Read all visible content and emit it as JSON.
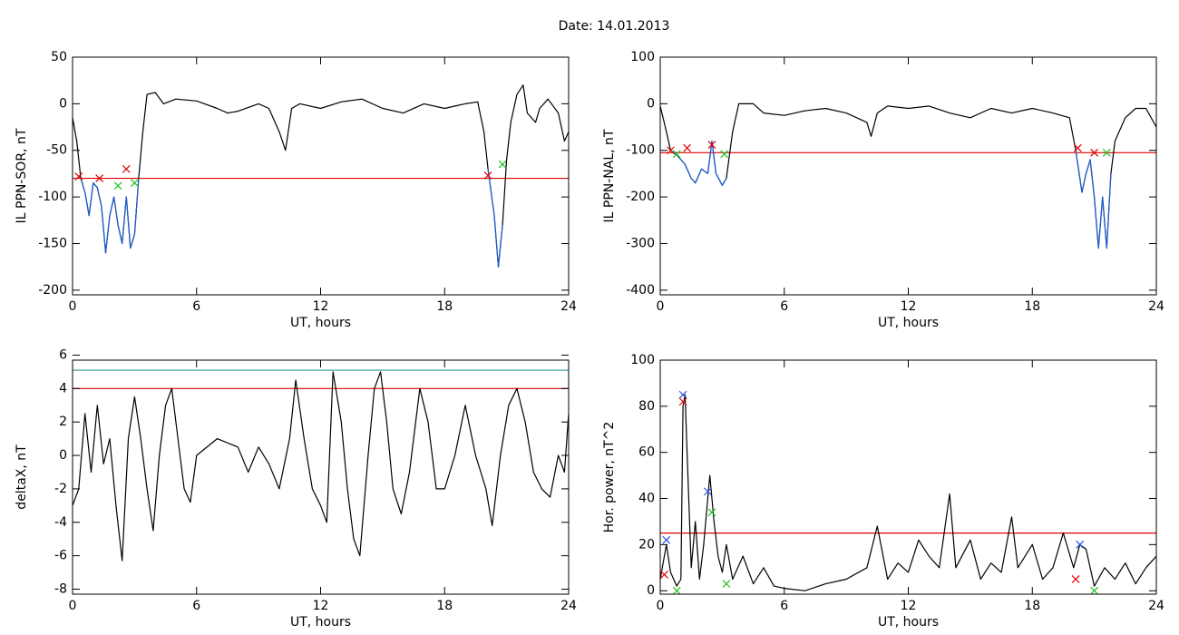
{
  "title": "Date:  14.01.2013",
  "chart_data": [
    {
      "type": "line",
      "xlabel": "UT, hours",
      "ylabel": "IL PPN-SOR, nT",
      "xlim": [
        0,
        24
      ],
      "xticks": [
        0,
        6,
        12,
        18,
        24
      ],
      "ylim": [
        -205,
        50
      ],
      "yticks": [
        -200,
        -150,
        -100,
        -50,
        0,
        50
      ],
      "hlines": [
        {
          "value": -80,
          "color": "#e00000"
        }
      ],
      "series": [
        {
          "color": "#000000",
          "x": [
            0,
            0.2,
            0.4,
            0.6,
            0.8,
            1.0,
            1.2,
            1.4,
            1.6,
            1.8,
            2.0,
            2.2,
            2.4,
            2.6,
            2.8,
            3.0,
            3.2,
            3.4,
            3.6,
            4.0,
            4.4,
            5.0,
            6,
            7,
            7.5,
            8,
            9,
            9.5,
            10,
            10.3,
            10.6,
            11,
            12,
            13,
            14,
            15,
            16,
            17,
            18,
            19,
            19.6,
            19.9,
            20.1,
            20.4,
            20.6,
            20.8,
            21.0,
            21.2,
            21.5,
            21.8,
            22,
            22.4,
            22.6,
            23,
            23.5,
            23.8,
            24
          ],
          "values": [
            -15,
            -40,
            -80,
            -95,
            -120,
            -85,
            -90,
            -110,
            -160,
            -120,
            -100,
            -130,
            -150,
            -100,
            -155,
            -140,
            -80,
            -30,
            10,
            12,
            0,
            5,
            3,
            -5,
            -10,
            -8,
            0,
            -5,
            -30,
            -50,
            -5,
            0,
            -5,
            2,
            5,
            -5,
            -10,
            0,
            -5,
            0,
            2,
            -30,
            -70,
            -120,
            -175,
            -130,
            -60,
            -20,
            10,
            20,
            -10,
            -20,
            -5,
            5,
            -10,
            -40,
            -30
          ]
        },
        {
          "color": "#1f5fd6",
          "x": [
            0.4,
            0.6,
            0.8,
            1.0,
            1.2,
            1.4,
            1.6,
            1.8,
            2.0,
            2.2,
            2.4,
            2.6,
            2.8,
            3.0,
            3.2,
            10,
            20.1,
            20.4,
            20.6,
            20.8
          ],
          "values": [
            -80,
            -95,
            -120,
            -85,
            -90,
            -110,
            -160,
            -120,
            -100,
            -130,
            -150,
            -100,
            -155,
            -140,
            -80,
            null,
            -70,
            -120,
            -175,
            -130
          ]
        }
      ],
      "markers": [
        {
          "color": "#e00000",
          "x": [
            0.3,
            1.3,
            2.6,
            20.1
          ],
          "values": [
            -78,
            -80,
            -70,
            -77
          ]
        },
        {
          "color": "#20c020",
          "x": [
            2.2,
            3.0,
            20.8
          ],
          "values": [
            -88,
            -85,
            -65
          ]
        }
      ]
    },
    {
      "type": "line",
      "xlabel": "UT, hours",
      "ylabel": "IL PPN-NAL, nT",
      "xlim": [
        0,
        24
      ],
      "xticks": [
        0,
        6,
        12,
        18,
        24
      ],
      "ylim": [
        -410,
        100
      ],
      "yticks": [
        -400,
        -300,
        -200,
        -100,
        0,
        100
      ],
      "hlines": [
        {
          "value": -105,
          "color": "#e00000"
        }
      ],
      "series": [
        {
          "color": "#000000",
          "x": [
            0,
            0.3,
            0.5,
            0.8,
            1.0,
            1.2,
            1.5,
            1.7,
            2.0,
            2.3,
            2.5,
            2.7,
            3.0,
            3.2,
            3.5,
            3.8,
            4.5,
            5,
            6,
            7,
            8,
            9,
            10,
            10.2,
            10.5,
            11,
            12,
            13,
            14,
            15,
            16,
            17,
            18,
            19,
            19.8,
            20.1,
            20.4,
            20.6,
            20.8,
            21.0,
            21.2,
            21.4,
            21.6,
            21.8,
            22,
            22.5,
            23,
            23.5,
            24
          ],
          "values": [
            -5,
            -60,
            -100,
            -110,
            -120,
            -130,
            -160,
            -170,
            -140,
            -150,
            -80,
            -150,
            -175,
            -160,
            -60,
            0,
            0,
            -20,
            -25,
            -15,
            -10,
            -20,
            -40,
            -70,
            -20,
            -5,
            -10,
            -5,
            -20,
            -30,
            -10,
            -20,
            -10,
            -20,
            -30,
            -100,
            -190,
            -150,
            -120,
            -200,
            -310,
            -200,
            -310,
            -150,
            -80,
            -30,
            -10,
            -10,
            -50
          ]
        },
        {
          "color": "#1f5fd6",
          "x": [
            0.5,
            0.8,
            1.0,
            1.2,
            1.5,
            1.7,
            2.0,
            2.3,
            2.5,
            2.7,
            3.0,
            3.2,
            10,
            20.1,
            20.4,
            20.6,
            20.8,
            21.0,
            21.2,
            21.4,
            21.6,
            21.8
          ],
          "values": [
            -100,
            -110,
            -120,
            -130,
            -160,
            -170,
            -140,
            -150,
            -80,
            -150,
            -175,
            -160,
            null,
            -100,
            -190,
            -150,
            -120,
            -200,
            -310,
            -200,
            -310,
            -150
          ]
        }
      ],
      "markers": [
        {
          "color": "#e00000",
          "x": [
            0.5,
            1.3,
            2.5,
            20.2,
            21.0
          ],
          "values": [
            -100,
            -95,
            -88,
            -95,
            -105
          ]
        },
        {
          "color": "#20c020",
          "x": [
            0.8,
            3.1,
            21.6
          ],
          "values": [
            -108,
            -108,
            -105
          ]
        }
      ]
    },
    {
      "type": "line",
      "xlabel": "UT, hours",
      "ylabel": "deltaX, nT",
      "xlim": [
        0,
        24
      ],
      "xticks": [
        0,
        6,
        12,
        18,
        24
      ],
      "ylim": [
        -8.3,
        5.7
      ],
      "yticks": [
        -8,
        -6,
        -4,
        -2,
        0,
        2,
        4,
        6
      ],
      "hlines": [
        {
          "value": 5.1,
          "color": "#2a9a9a"
        },
        {
          "value": 4.0,
          "color": "#e00000"
        }
      ],
      "series": [
        {
          "color": "#000000",
          "x": [
            0,
            0.3,
            0.6,
            0.9,
            1.2,
            1.5,
            1.8,
            2.1,
            2.4,
            2.7,
            3.0,
            3.3,
            3.6,
            3.9,
            4.2,
            4.5,
            4.8,
            5.1,
            5.4,
            5.7,
            6,
            7,
            8,
            8.5,
            9,
            9.5,
            10,
            10.5,
            10.8,
            11.2,
            11.6,
            12,
            12.3,
            12.6,
            13,
            13.3,
            13.6,
            13.9,
            14.3,
            14.6,
            14.9,
            15.2,
            15.5,
            15.9,
            16.3,
            16.8,
            17.2,
            17.6,
            18,
            18.5,
            19,
            19.5,
            20,
            20.3,
            20.7,
            21.1,
            21.5,
            21.9,
            22.3,
            22.7,
            23.1,
            23.5,
            23.8,
            24
          ],
          "values": [
            -3,
            -2,
            2.5,
            -1,
            3,
            -0.5,
            1,
            -3,
            -6.3,
            1,
            3.5,
            1,
            -2,
            -4.5,
            0,
            3,
            4,
            1,
            -2,
            -2.8,
            0,
            1,
            0.5,
            -1,
            0.5,
            -0.5,
            -2,
            1,
            4.5,
            1,
            -2,
            -3,
            -4,
            5,
            2,
            -2,
            -5,
            -6,
            0,
            4,
            5,
            2,
            -2,
            -3.5,
            -1,
            4,
            2,
            -2,
            -2,
            0,
            3,
            0,
            -2,
            -4.2,
            0,
            3,
            4,
            2,
            -1,
            -2,
            -2.5,
            0,
            -1,
            2.5
          ]
        }
      ],
      "markers": []
    },
    {
      "type": "line",
      "xlabel": "UT, hours",
      "ylabel": "Hor. power, nT^2",
      "xlim": [
        0,
        24
      ],
      "xticks": [
        0,
        6,
        12,
        18,
        24
      ],
      "ylim": [
        -1.5,
        100
      ],
      "yticks": [
        0,
        20,
        40,
        60,
        80,
        100
      ],
      "hlines": [
        {
          "value": 25,
          "color": "#e00000"
        }
      ],
      "series": [
        {
          "color": "#000000",
          "x": [
            0,
            0.3,
            0.5,
            0.8,
            1.0,
            1.1,
            1.2,
            1.3,
            1.5,
            1.7,
            1.9,
            2.1,
            2.3,
            2.4,
            2.6,
            2.8,
            3.0,
            3.2,
            3.5,
            4,
            4.5,
            5,
            5.5,
            6,
            7,
            8,
            9,
            10,
            10.5,
            11,
            11.5,
            12,
            12.5,
            13,
            13.5,
            14,
            14.3,
            15,
            15.5,
            16,
            16.5,
            17,
            17.3,
            18,
            18.5,
            19,
            19.5,
            20,
            20.3,
            20.6,
            21,
            21.5,
            22,
            22.5,
            23,
            23.5,
            24
          ],
          "values": [
            5,
            20,
            8,
            2,
            5,
            80,
            85,
            60,
            10,
            30,
            5,
            20,
            40,
            50,
            30,
            15,
            8,
            20,
            5,
            15,
            3,
            10,
            2,
            1,
            0,
            3,
            5,
            10,
            28,
            5,
            12,
            8,
            22,
            15,
            10,
            42,
            10,
            22,
            5,
            12,
            8,
            32,
            10,
            20,
            5,
            10,
            25,
            10,
            20,
            18,
            2,
            10,
            5,
            12,
            3,
            10,
            15
          ]
        }
      ],
      "markers": [
        {
          "color": "#2050e0",
          "x": [
            0.3,
            1.1,
            2.3,
            20.3
          ],
          "values": [
            22,
            85,
            43,
            20
          ]
        },
        {
          "color": "#e00000",
          "x": [
            0.2,
            1.1,
            20.1
          ],
          "values": [
            7,
            82,
            5
          ]
        },
        {
          "color": "#20c020",
          "x": [
            0.8,
            2.5,
            3.2,
            21
          ],
          "values": [
            0,
            34,
            3,
            0
          ]
        }
      ]
    }
  ]
}
